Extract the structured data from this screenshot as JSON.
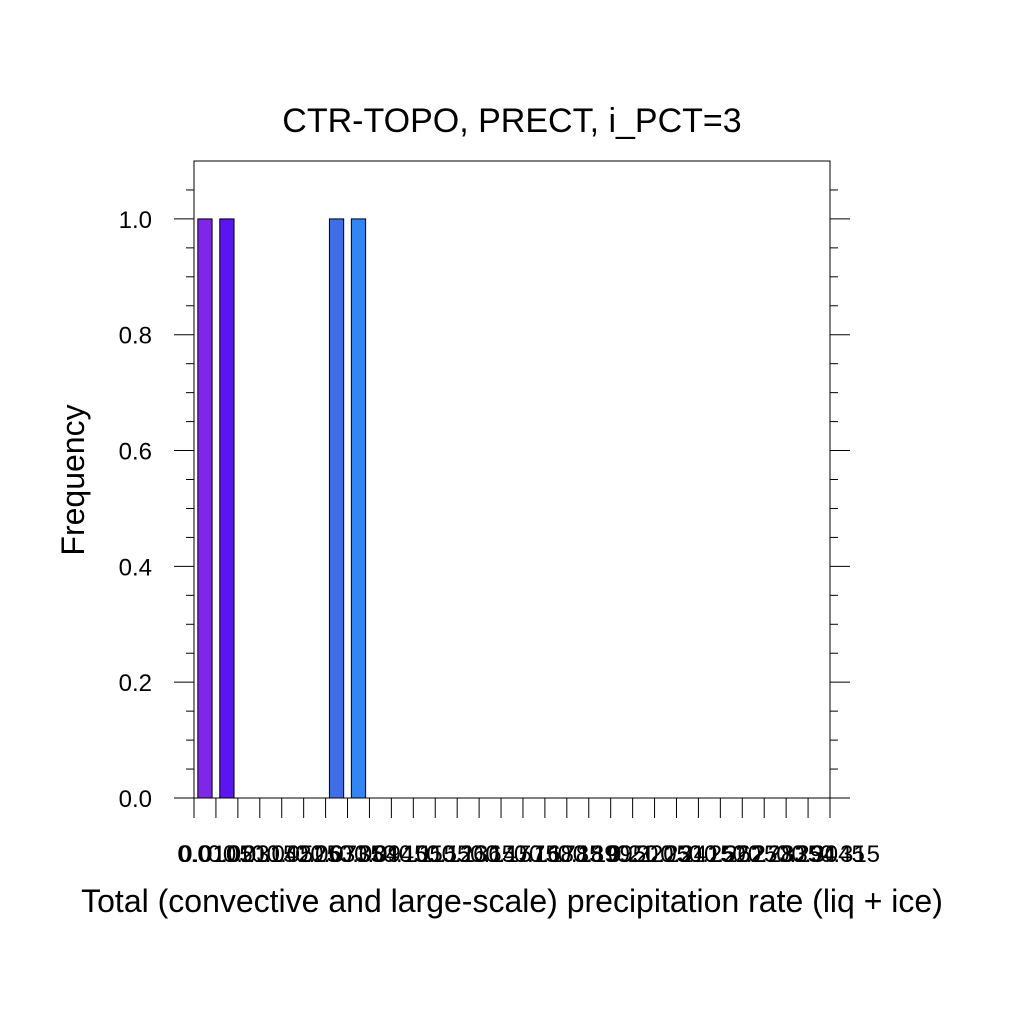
{
  "chart_data": {
    "type": "bar",
    "title": "CTR-TOPO, PRECT, i_PCT=3",
    "xlabel": "Total (convective and large-scale) precipitation rate (liq + ice)",
    "ylabel": "Frequency",
    "ylim": [
      0,
      1.1
    ],
    "yticks": [
      "0.0",
      "0.2",
      "0.4",
      "0.6",
      "0.8",
      "1.0"
    ],
    "ytick_values": [
      0,
      0.2,
      0.4,
      0.6,
      0.8,
      1.0
    ],
    "bin_count": 29,
    "xtick_labels": [
      "0.0",
      "0.0105",
      "0.021",
      "0.0315",
      "0.042",
      "0.0525",
      "0.063",
      "0.0735",
      "0.084",
      "0.0945",
      "0.105",
      "0.1155",
      "0.126",
      "0.1365",
      "0.147",
      "0.1575",
      "0.168",
      "0.1785",
      "0.189",
      "0.1995",
      "0.21",
      "0.2205",
      "0.231",
      "0.2415",
      "0.252",
      "0.2625",
      "0.273",
      "0.2835",
      "0.294",
      "0.3045",
      "0.315"
    ],
    "bars": [
      {
        "bin": 0,
        "value": 1.0,
        "color": "#7f27e6"
      },
      {
        "bin": 1,
        "value": 1.0,
        "color": "#5b16f0"
      },
      {
        "bin": 6,
        "value": 1.0,
        "color": "#3f6fe6"
      },
      {
        "bin": 7,
        "value": 1.0,
        "color": "#3485f4"
      }
    ],
    "grid": false,
    "legend": "none"
  }
}
